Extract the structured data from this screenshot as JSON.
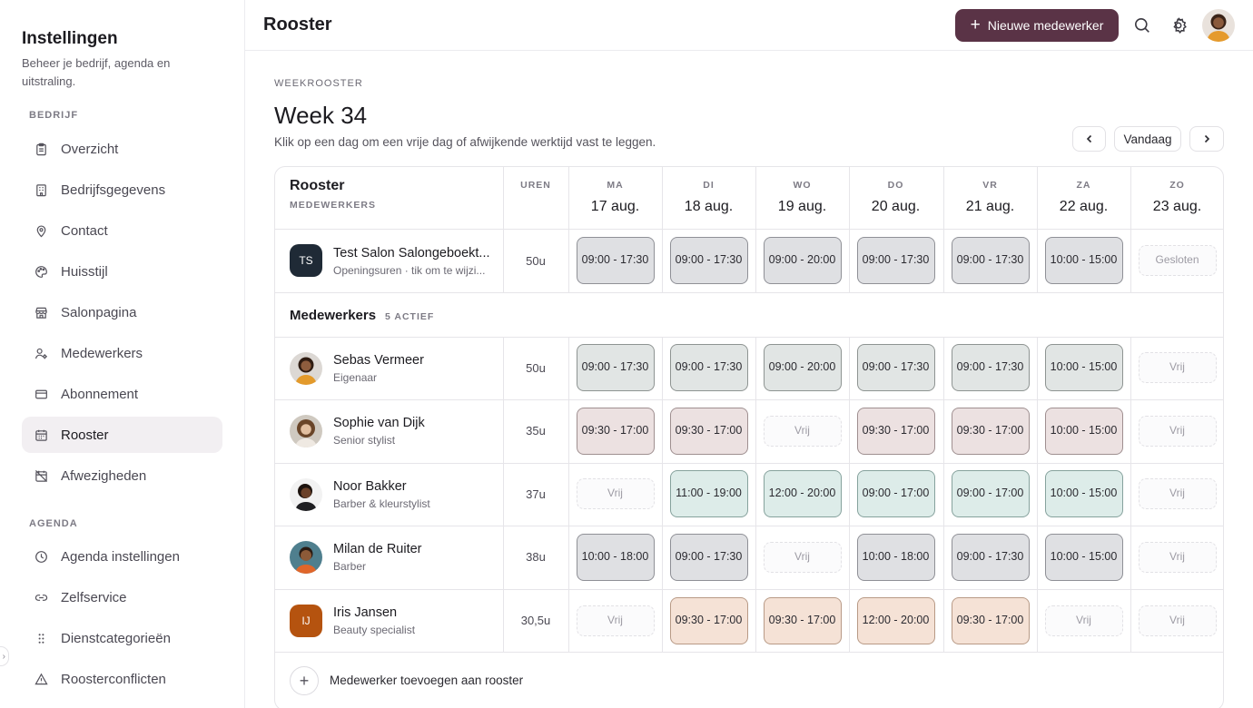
{
  "sidebar": {
    "title": "Instellingen",
    "subtitle": "Beheer je bedrijf, agenda en uitstraling.",
    "groups": [
      {
        "label": "BEDRIJF"
      },
      {
        "label": "AGENDA"
      }
    ],
    "items": [
      {
        "label": "Overzicht",
        "icon": "clipboard-icon"
      },
      {
        "label": "Bedrijfsgegevens",
        "icon": "building-icon"
      },
      {
        "label": "Contact",
        "icon": "location-pin-icon"
      },
      {
        "label": "Huisstijl",
        "icon": "palette-icon"
      },
      {
        "label": "Salonpagina",
        "icon": "store-icon"
      },
      {
        "label": "Medewerkers",
        "icon": "users-icon"
      },
      {
        "label": "Abonnement",
        "icon": "credit-card-icon"
      },
      {
        "label": "Rooster",
        "icon": "calendar-icon",
        "active": true
      },
      {
        "label": "Afwezigheden",
        "icon": "calendar-off-icon"
      },
      {
        "label": "Agenda instellingen",
        "icon": "clock-icon"
      },
      {
        "label": "Zelfservice",
        "icon": "link-icon"
      },
      {
        "label": "Dienstcategorieën",
        "icon": "grip-icon"
      },
      {
        "label": "Roosterconflicten",
        "icon": "warning-icon"
      }
    ]
  },
  "header": {
    "title": "Rooster",
    "new_button": "Nieuwe medewerker"
  },
  "page": {
    "eyebrow": "WEEKROOSTER",
    "week": "Week 34",
    "hint": "Klik op een dag om een vrije dag of afwijkende werktijd vast te leggen.",
    "today_button": "Vandaag"
  },
  "table": {
    "title": "Rooster",
    "subtitle": "MEDEWERKERS",
    "hours_header": "UREN",
    "days": [
      {
        "abbr": "MA",
        "date": "17 aug."
      },
      {
        "abbr": "DI",
        "date": "18 aug."
      },
      {
        "abbr": "WO",
        "date": "19 aug."
      },
      {
        "abbr": "DO",
        "date": "20 aug."
      },
      {
        "abbr": "VR",
        "date": "21 aug."
      },
      {
        "abbr": "ZA",
        "date": "22 aug."
      },
      {
        "abbr": "ZO",
        "date": "23 aug."
      }
    ],
    "salon": {
      "initials": "TS",
      "name": "Test Salon Salongeboekt...",
      "role": "Openingsuren · tik om te wijzi...",
      "hours": "50u",
      "shifts": [
        {
          "text": "09:00 - 17:30",
          "style": "grey"
        },
        {
          "text": "09:00 - 17:30",
          "style": "grey"
        },
        {
          "text": "09:00 - 20:00",
          "style": "grey"
        },
        {
          "text": "09:00 - 17:30",
          "style": "grey"
        },
        {
          "text": "09:00 - 17:30",
          "style": "grey"
        },
        {
          "text": "10:00 - 15:00",
          "style": "grey"
        },
        {
          "text": "Gesloten",
          "style": "free"
        }
      ]
    },
    "section": {
      "title": "Medewerkers",
      "badge": "5 ACTIEF"
    },
    "staff": [
      {
        "name": "Sebas Vermeer",
        "role": "Eigenaar",
        "hours": "50u",
        "avatar": "photo",
        "shifts": [
          {
            "text": "09:00 - 17:30",
            "style": "sage"
          },
          {
            "text": "09:00 - 17:30",
            "style": "sage"
          },
          {
            "text": "09:00 - 20:00",
            "style": "sage"
          },
          {
            "text": "09:00 - 17:30",
            "style": "sage"
          },
          {
            "text": "09:00 - 17:30",
            "style": "sage"
          },
          {
            "text": "10:00 - 15:00",
            "style": "sage"
          },
          {
            "text": "Vrij",
            "style": "free"
          }
        ]
      },
      {
        "name": "Sophie van Dijk",
        "role": "Senior stylist",
        "hours": "35u",
        "avatar": "photo",
        "shifts": [
          {
            "text": "09:30 - 17:00",
            "style": "rose"
          },
          {
            "text": "09:30 - 17:00",
            "style": "rose"
          },
          {
            "text": "Vrij",
            "style": "free"
          },
          {
            "text": "09:30 - 17:00",
            "style": "rose"
          },
          {
            "text": "09:30 - 17:00",
            "style": "rose"
          },
          {
            "text": "10:00 - 15:00",
            "style": "rose"
          },
          {
            "text": "Vrij",
            "style": "free"
          }
        ]
      },
      {
        "name": "Noor Bakker",
        "role": "Barber & kleurstylist",
        "hours": "37u",
        "avatar": "photo",
        "shifts": [
          {
            "text": "Vrij",
            "style": "free"
          },
          {
            "text": "11:00 - 19:00",
            "style": "mint"
          },
          {
            "text": "12:00 - 20:00",
            "style": "mint"
          },
          {
            "text": "09:00 - 17:00",
            "style": "mint"
          },
          {
            "text": "09:00 - 17:00",
            "style": "mint"
          },
          {
            "text": "10:00 - 15:00",
            "style": "mint"
          },
          {
            "text": "Vrij",
            "style": "free"
          }
        ]
      },
      {
        "name": "Milan de Ruiter",
        "role": "Barber",
        "hours": "38u",
        "avatar": "photo",
        "shifts": [
          {
            "text": "10:00 - 18:00",
            "style": "grey"
          },
          {
            "text": "09:00 - 17:30",
            "style": "grey"
          },
          {
            "text": "Vrij",
            "style": "free"
          },
          {
            "text": "10:00 - 18:00",
            "style": "grey"
          },
          {
            "text": "09:00 - 17:30",
            "style": "grey"
          },
          {
            "text": "10:00 - 15:00",
            "style": "grey"
          },
          {
            "text": "Vrij",
            "style": "free"
          }
        ]
      },
      {
        "name": "Iris Jansen",
        "role": "Beauty specialist",
        "hours": "30,5u",
        "avatar": "initials",
        "initials": "IJ",
        "shifts": [
          {
            "text": "Vrij",
            "style": "free"
          },
          {
            "text": "09:30 - 17:00",
            "style": "peach"
          },
          {
            "text": "09:30 - 17:00",
            "style": "peach"
          },
          {
            "text": "12:00 - 20:00",
            "style": "peach"
          },
          {
            "text": "09:30 - 17:00",
            "style": "peach"
          },
          {
            "text": "Vrij",
            "style": "free"
          },
          {
            "text": "Vrij",
            "style": "free"
          }
        ]
      }
    ],
    "add_label": "Medewerker toevoegen aan rooster"
  },
  "colors": {
    "accent": "#5a3346",
    "salon_avatar": "#1f2a36",
    "iris_avatar": "#b5530f"
  }
}
